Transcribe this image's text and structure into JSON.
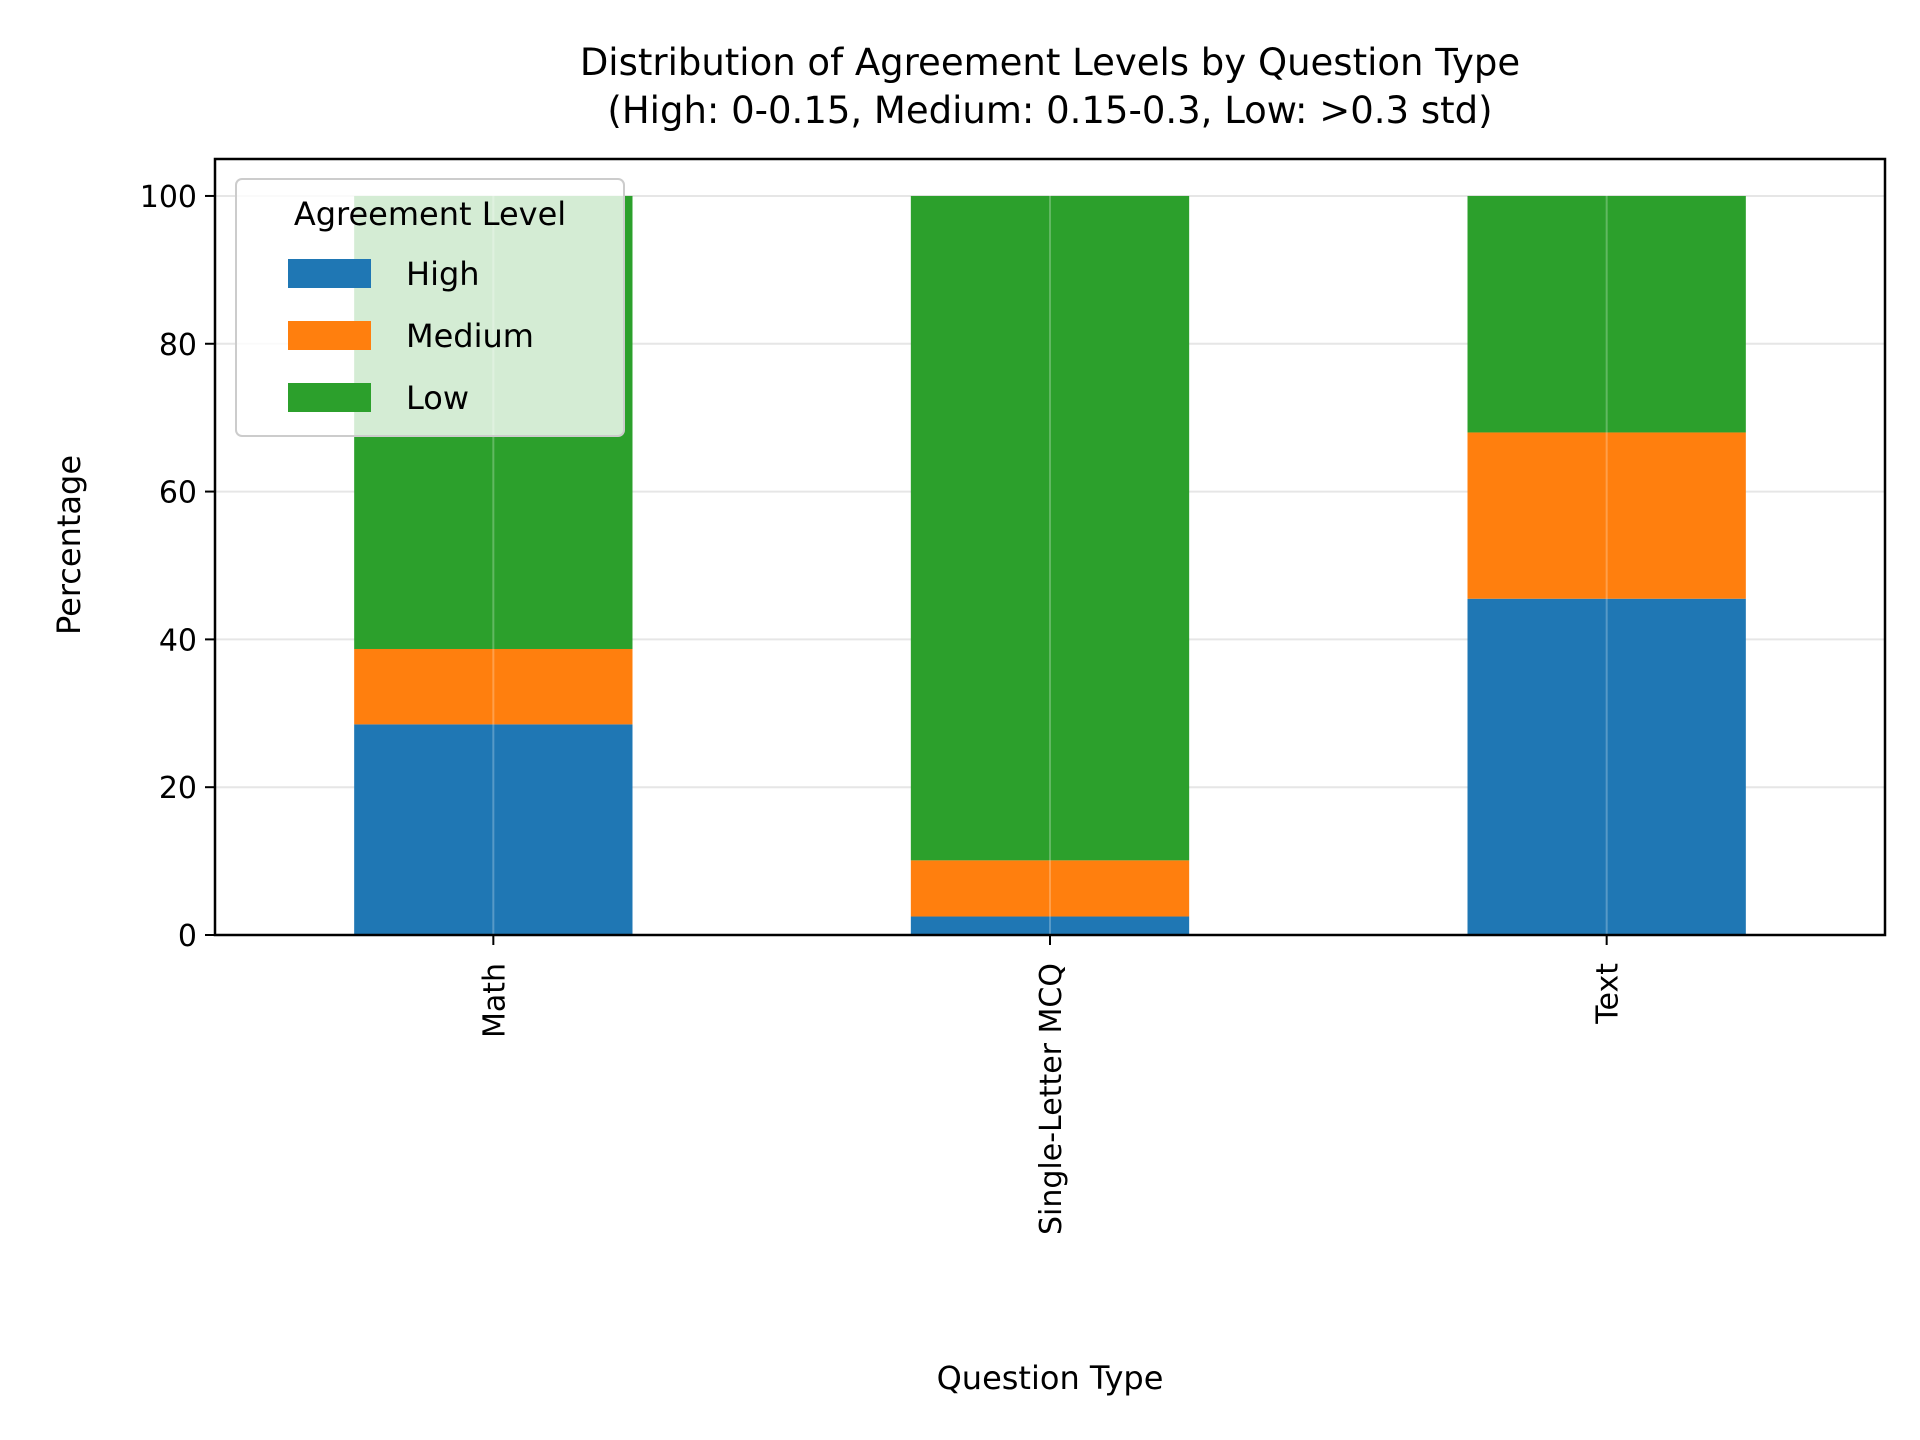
{
  "chart_data": {
    "type": "bar",
    "stacked": true,
    "title": "Distribution of Agreement Levels by Question Type",
    "subtitle": "(High: 0-0.15, Medium: 0.15-0.3, Low: >0.3 std)",
    "xlabel": "Question Type",
    "ylabel": "Percentage",
    "categories": [
      "Math",
      "Single-Letter MCQ",
      "Text"
    ],
    "series": [
      {
        "name": "High",
        "color": "#1f77b4",
        "values": [
          28.5,
          2.5,
          45.5
        ]
      },
      {
        "name": "Medium",
        "color": "#ff7f0e",
        "values": [
          10.2,
          7.6,
          22.5
        ]
      },
      {
        "name": "Low",
        "color": "#2ca02c",
        "values": [
          61.3,
          89.9,
          32.0
        ]
      }
    ],
    "ylim": [
      0,
      105
    ],
    "yticks": [
      "0",
      "20",
      "40",
      "60",
      "80",
      "100"
    ],
    "grid": true,
    "legend": {
      "title": "Agreement Level",
      "placement": "top-left"
    },
    "x_tick_rotation": "vertical"
  }
}
